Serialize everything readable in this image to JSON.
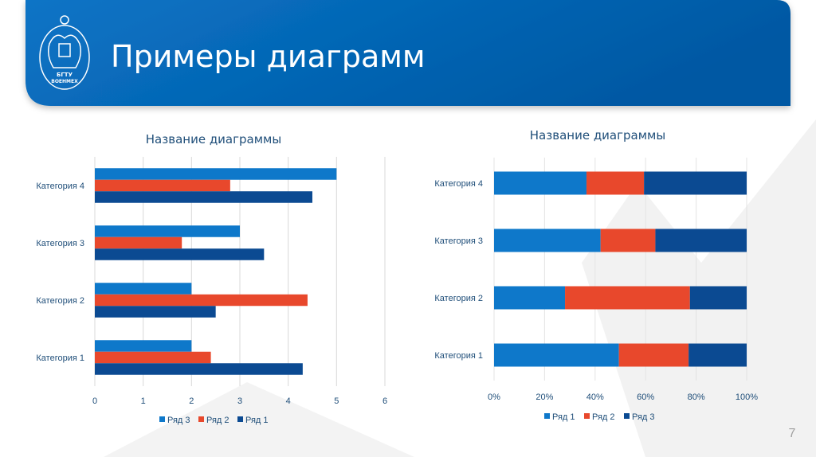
{
  "slide": {
    "title": "Примеры диаграмм",
    "logo_text": [
      "БГТУ",
      "ВОЕНМЕХ"
    ],
    "page_number": "7",
    "header_color": "#0a6cbf"
  },
  "colors": {
    "series_light": "#0e78ca",
    "series_orange": "#e8482c",
    "series_dark": "#0b4a92"
  },
  "chart_data": [
    {
      "type": "bar",
      "orientation": "horizontal",
      "title": "Название диаграммы",
      "categories": [
        "Категория 1",
        "Категория 2",
        "Категория 3",
        "Категория 4"
      ],
      "series": [
        {
          "name": "Ряд 1",
          "values": [
            4.3,
            2.5,
            3.5,
            4.5
          ],
          "color": "#0b4a92"
        },
        {
          "name": "Ряд 2",
          "values": [
            2.4,
            4.4,
            1.8,
            2.8
          ],
          "color": "#e8482c"
        },
        {
          "name": "Ряд 3",
          "values": [
            2,
            2,
            3,
            5
          ],
          "color": "#0e78ca"
        }
      ],
      "xlim": [
        0,
        6
      ],
      "x_ticks": [
        "0",
        "1",
        "2",
        "3",
        "4",
        "5",
        "6"
      ],
      "grid": true,
      "legend": {
        "position": "bottom",
        "entries": [
          "Ряд 3",
          "Ряд 2",
          "Ряд 1"
        ]
      }
    },
    {
      "type": "bar",
      "orientation": "horizontal",
      "stacking": "percent",
      "title": "Название диаграммы",
      "categories": [
        "Категория 1",
        "Категория 2",
        "Категория 3",
        "Категория 4"
      ],
      "series": [
        {
          "name": "Ряд 1",
          "values": [
            4.3,
            2.5,
            3.5,
            4.5
          ],
          "color": "#0e78ca"
        },
        {
          "name": "Ряд 2",
          "values": [
            2.4,
            4.4,
            1.8,
            2.8
          ],
          "color": "#e8482c"
        },
        {
          "name": "Ряд 3",
          "values": [
            2,
            2,
            3,
            5
          ],
          "color": "#0b4a92"
        }
      ],
      "xlim": [
        0,
        100
      ],
      "x_ticks": [
        "0%",
        "20%",
        "40%",
        "60%",
        "80%",
        "100%"
      ],
      "grid": true,
      "legend": {
        "position": "bottom",
        "entries": [
          "Ряд 1",
          "Ряд 2",
          "Ряд 3"
        ]
      }
    }
  ]
}
